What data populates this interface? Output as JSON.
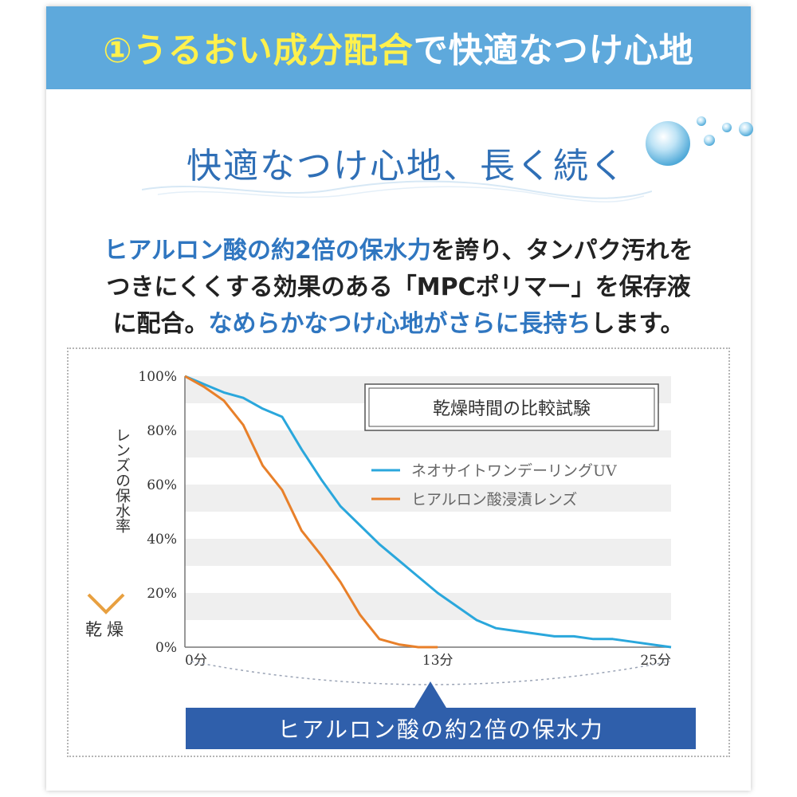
{
  "banner": {
    "highlight": "①うるおい成分配合",
    "rest": "で快適なつけ心地"
  },
  "subtitle": "快適なつけ心地、長く続く",
  "description": {
    "line1_blue": "ヒアルロン酸の約2倍の保水力",
    "line1_black": "を誇り、タンパク汚れを",
    "line2": "つきにくくする効果のある「MPCポリマー」を保存液",
    "line3_black_a": "に配合。",
    "line3_blue": "なめらかなつけ心地がさらに長持ち",
    "line3_black_b": "します。"
  },
  "colors": {
    "banner": "#5ea9dc",
    "banner_highlight": "#fff14d",
    "accent_blue": "#2f76c0",
    "series_blue": "#2aa7dc",
    "series_orange": "#e8802a",
    "callout": "#2f5fab"
  },
  "chart_data": {
    "type": "line",
    "title": "乾燥時間の比較試験",
    "ylabel": "レンズの保水率",
    "ylabel_bottom": "乾燥",
    "xlim": [
      0,
      25
    ],
    "ylim": [
      0,
      100
    ],
    "y_ticks": [
      "100%",
      "80%",
      "60%",
      "40%",
      "20%",
      "0%"
    ],
    "x_ticks": [
      {
        "value": 0,
        "label": "0分"
      },
      {
        "value": 13,
        "label": "13分"
      },
      {
        "value": 25,
        "label": "25分"
      }
    ],
    "legend_position": "top-right",
    "grid": "horizontal bands",
    "series": [
      {
        "name": "ネオサイトワンデーリングUV",
        "color": "#2aa7dc",
        "x": [
          0,
          1,
          2,
          3,
          4,
          5,
          6,
          7,
          8,
          9,
          10,
          11,
          12,
          13,
          14,
          15,
          16,
          17,
          18,
          19,
          20,
          21,
          22,
          23,
          24,
          25
        ],
        "y": [
          100,
          97,
          94,
          92,
          88,
          85,
          73,
          62,
          52,
          45,
          38,
          32,
          26,
          20,
          15,
          10,
          7,
          6,
          5,
          4,
          4,
          3,
          3,
          2,
          1,
          0
        ]
      },
      {
        "name": "ヒアルロン酸浸漬レンズ",
        "color": "#e8802a",
        "x": [
          0,
          1,
          2,
          3,
          4,
          5,
          6,
          7,
          8,
          9,
          10,
          11,
          12,
          13
        ],
        "y": [
          100,
          96,
          91,
          82,
          67,
          58,
          43,
          34,
          24,
          12,
          3,
          1,
          0,
          0
        ]
      }
    ]
  },
  "callout": "ヒアルロン酸の約2倍の保水力"
}
